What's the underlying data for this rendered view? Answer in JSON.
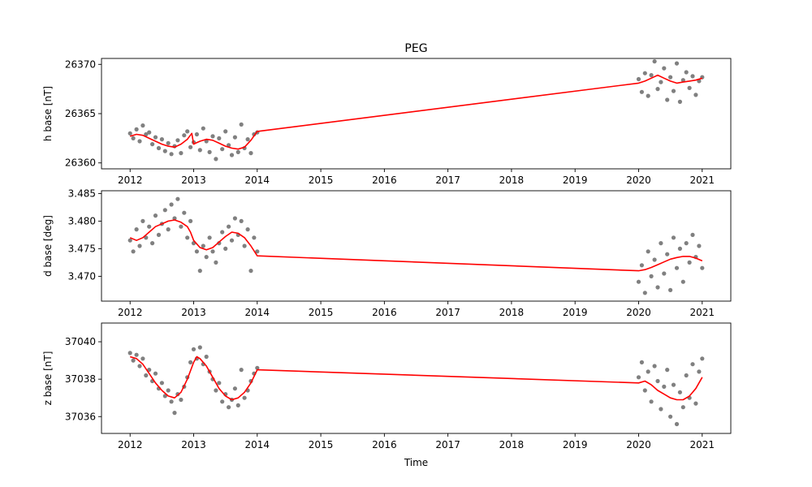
{
  "figure": {
    "title": "PEG",
    "xlabel": "Time"
  },
  "colors": {
    "points": "#808080",
    "fit": "#ff0000",
    "axes": "#000000",
    "background": "#ffffff"
  },
  "chart_data": [
    {
      "type": "scatter",
      "title": "PEG",
      "xlabel": "",
      "ylabel": "h base [nT]",
      "xlim": [
        2011.55,
        2021.45
      ],
      "ylim": [
        26359.4,
        26370.6
      ],
      "x_ticks": [
        2012,
        2013,
        2014,
        2015,
        2016,
        2017,
        2018,
        2019,
        2020,
        2021
      ],
      "y_ticks": [
        26360,
        26365,
        26370
      ],
      "grid": false,
      "series": [
        {
          "style": "points",
          "color": "#808080",
          "x": [
            2012.0,
            2012.05,
            2012.1,
            2012.15,
            2012.2,
            2012.25,
            2012.3,
            2012.35,
            2012.4,
            2012.45,
            2012.5,
            2012.55,
            2012.6,
            2012.65,
            2012.7,
            2012.75,
            2012.8,
            2012.85,
            2012.9,
            2012.95,
            2013.0,
            2013.05,
            2013.1,
            2013.15,
            2013.2,
            2013.25,
            2013.3,
            2013.35,
            2013.4,
            2013.45,
            2013.5,
            2013.55,
            2013.6,
            2013.65,
            2013.7,
            2013.75,
            2013.8,
            2013.85,
            2013.9,
            2013.95,
            2014.0,
            2020.0,
            2020.05,
            2020.1,
            2020.15,
            2020.2,
            2020.25,
            2020.3,
            2020.35,
            2020.4,
            2020.45,
            2020.5,
            2020.55,
            2020.6,
            2020.65,
            2020.7,
            2020.75,
            2020.8,
            2020.85,
            2020.9,
            2020.95,
            2021.0
          ],
          "y": [
            26363.0,
            26362.5,
            26363.4,
            26362.2,
            26363.8,
            26362.9,
            26363.1,
            26361.9,
            26362.6,
            26361.5,
            26362.4,
            26361.2,
            26362.0,
            26360.9,
            26361.7,
            26362.3,
            26361.0,
            26362.8,
            26363.2,
            26361.6,
            26362.1,
            26362.9,
            26361.3,
            26363.5,
            26362.2,
            26361.1,
            26362.7,
            26360.4,
            26362.5,
            26361.4,
            26363.2,
            26361.8,
            26360.8,
            26362.6,
            26361.1,
            26363.9,
            26361.5,
            26362.4,
            26361.0,
            26362.9,
            26363.1,
            26368.5,
            26367.2,
            26369.1,
            26366.8,
            26368.9,
            26370.3,
            26367.5,
            26368.2,
            26369.6,
            26366.4,
            26368.7,
            26367.3,
            26370.1,
            26366.2,
            26368.4,
            26369.2,
            26367.6,
            26368.8,
            26366.9,
            26368.3,
            26368.7
          ]
        },
        {
          "style": "line",
          "color": "#ff0000",
          "x": [
            2012.0,
            2012.1,
            2012.2,
            2012.3,
            2012.4,
            2012.5,
            2012.6,
            2012.7,
            2012.8,
            2012.9,
            2012.97,
            2013.0,
            2013.03,
            2013.1,
            2013.2,
            2013.3,
            2013.4,
            2013.5,
            2013.6,
            2013.7,
            2013.8,
            2013.9,
            2014.0,
            2020.0,
            2020.1,
            2020.2,
            2020.3,
            2020.4,
            2020.5,
            2020.6,
            2020.7,
            2020.8,
            2020.9,
            2021.0
          ],
          "y": [
            26362.7,
            26362.9,
            26362.8,
            26362.5,
            26362.2,
            26361.9,
            26361.7,
            26361.6,
            26361.9,
            26362.4,
            26363.0,
            26361.9,
            26362.0,
            26362.2,
            26362.4,
            26362.3,
            26362.0,
            26361.7,
            26361.5,
            26361.4,
            26361.6,
            26362.3,
            26363.2,
            26368.1,
            26368.3,
            26368.6,
            26368.9,
            26368.6,
            26368.3,
            26368.1,
            26368.2,
            26368.3,
            26368.4,
            26368.6
          ]
        }
      ]
    },
    {
      "type": "scatter",
      "title": "",
      "xlabel": "",
      "ylabel": "d base [deg]",
      "xlim": [
        2011.55,
        2021.45
      ],
      "ylim": [
        3.4655,
        3.4855
      ],
      "x_ticks": [
        2012,
        2013,
        2014,
        2015,
        2016,
        2017,
        2018,
        2019,
        2020,
        2021
      ],
      "y_ticks": [
        3.47,
        3.475,
        3.48,
        3.485
      ],
      "grid": false,
      "series": [
        {
          "style": "points",
          "color": "#808080",
          "x": [
            2012.0,
            2012.05,
            2012.1,
            2012.15,
            2012.2,
            2012.25,
            2012.3,
            2012.35,
            2012.4,
            2012.45,
            2012.5,
            2012.55,
            2012.6,
            2012.65,
            2012.7,
            2012.75,
            2012.8,
            2012.85,
            2012.9,
            2012.95,
            2013.0,
            2013.05,
            2013.1,
            2013.15,
            2013.2,
            2013.25,
            2013.3,
            2013.35,
            2013.4,
            2013.45,
            2013.5,
            2013.55,
            2013.6,
            2013.65,
            2013.7,
            2013.75,
            2013.8,
            2013.85,
            2013.9,
            2013.95,
            2014.0,
            2020.0,
            2020.05,
            2020.1,
            2020.15,
            2020.2,
            2020.25,
            2020.3,
            2020.35,
            2020.4,
            2020.45,
            2020.5,
            2020.55,
            2020.6,
            2020.65,
            2020.7,
            2020.75,
            2020.8,
            2020.85,
            2020.9,
            2020.95,
            2021.0
          ],
          "y": [
            3.4765,
            3.4745,
            3.4785,
            3.4755,
            3.48,
            3.477,
            3.479,
            3.476,
            3.481,
            3.4775,
            3.4795,
            3.482,
            3.4785,
            3.483,
            3.4805,
            3.484,
            3.479,
            3.4815,
            3.477,
            3.48,
            3.476,
            3.4745,
            3.471,
            3.4755,
            3.4735,
            3.477,
            3.4745,
            3.4725,
            3.476,
            3.478,
            3.475,
            3.479,
            3.4765,
            3.4805,
            3.4775,
            3.48,
            3.4755,
            3.4785,
            3.471,
            3.477,
            3.4745,
            3.469,
            3.472,
            3.467,
            3.4745,
            3.47,
            3.473,
            3.468,
            3.476,
            3.4705,
            3.474,
            3.4675,
            3.477,
            3.4715,
            3.475,
            3.469,
            3.476,
            3.4725,
            3.4775,
            3.4735,
            3.4755,
            3.4715
          ]
        },
        {
          "style": "line",
          "color": "#ff0000",
          "x": [
            2012.0,
            2012.1,
            2012.2,
            2012.3,
            2012.4,
            2012.5,
            2012.6,
            2012.7,
            2012.8,
            2012.9,
            2012.95,
            2013.0,
            2013.1,
            2013.2,
            2013.3,
            2013.4,
            2013.5,
            2013.6,
            2013.7,
            2013.8,
            2013.9,
            2014.0,
            2020.0,
            2020.1,
            2020.2,
            2020.3,
            2020.4,
            2020.5,
            2020.6,
            2020.7,
            2020.8,
            2020.9,
            2021.0
          ],
          "y": [
            3.477,
            3.4765,
            3.477,
            3.478,
            3.479,
            3.4795,
            3.48,
            3.4802,
            3.4798,
            3.479,
            3.478,
            3.4765,
            3.4752,
            3.4748,
            3.4752,
            3.4762,
            3.4772,
            3.478,
            3.4778,
            3.477,
            3.4755,
            3.4737,
            3.471,
            3.4712,
            3.4716,
            3.4721,
            3.4726,
            3.4731,
            3.4734,
            3.4736,
            3.4736,
            3.4733,
            3.4728
          ]
        }
      ]
    },
    {
      "type": "scatter",
      "title": "",
      "xlabel": "Time",
      "ylabel": "z base [nT]",
      "xlim": [
        2011.55,
        2021.45
      ],
      "ylim": [
        37035.1,
        37041.0
      ],
      "x_ticks": [
        2012,
        2013,
        2014,
        2015,
        2016,
        2017,
        2018,
        2019,
        2020,
        2021
      ],
      "y_ticks": [
        37036,
        37038,
        37040
      ],
      "grid": false,
      "series": [
        {
          "style": "points",
          "color": "#808080",
          "x": [
            2012.0,
            2012.05,
            2012.1,
            2012.15,
            2012.2,
            2012.25,
            2012.3,
            2012.35,
            2012.4,
            2012.45,
            2012.5,
            2012.55,
            2012.6,
            2012.65,
            2012.7,
            2012.75,
            2012.8,
            2012.85,
            2012.9,
            2012.95,
            2013.0,
            2013.05,
            2013.1,
            2013.15,
            2013.2,
            2013.25,
            2013.3,
            2013.35,
            2013.4,
            2013.45,
            2013.5,
            2013.55,
            2013.6,
            2013.65,
            2013.7,
            2013.75,
            2013.8,
            2013.85,
            2013.9,
            2013.95,
            2014.0,
            2020.0,
            2020.05,
            2020.1,
            2020.15,
            2020.2,
            2020.25,
            2020.3,
            2020.35,
            2020.4,
            2020.45,
            2020.5,
            2020.55,
            2020.6,
            2020.65,
            2020.7,
            2020.75,
            2020.8,
            2020.85,
            2020.9,
            2020.95,
            2021.0
          ],
          "y": [
            37039.4,
            37039.0,
            37039.3,
            37038.7,
            37039.1,
            37038.2,
            37038.5,
            37037.9,
            37038.3,
            37037.5,
            37037.8,
            37037.1,
            37037.4,
            37036.8,
            37036.2,
            37037.2,
            37036.9,
            37037.6,
            37038.1,
            37038.9,
            37039.6,
            37039.1,
            37039.7,
            37038.8,
            37039.2,
            37038.4,
            37038.0,
            37037.4,
            37037.8,
            37036.8,
            37037.2,
            37036.5,
            37036.9,
            37037.5,
            37036.6,
            37038.5,
            37037.0,
            37037.4,
            37037.9,
            37038.3,
            37038.6,
            37038.1,
            37038.9,
            37037.4,
            37038.4,
            37036.8,
            37038.7,
            37037.9,
            37036.4,
            37037.6,
            37038.5,
            37036.0,
            37037.7,
            37035.6,
            37037.3,
            37036.5,
            37038.2,
            37037.0,
            37038.8,
            37036.7,
            37038.4,
            37039.1
          ]
        },
        {
          "style": "line",
          "color": "#ff0000",
          "x": [
            2012.0,
            2012.1,
            2012.2,
            2012.3,
            2012.4,
            2012.5,
            2012.6,
            2012.7,
            2012.8,
            2012.9,
            2013.0,
            2013.05,
            2013.1,
            2013.2,
            2013.3,
            2013.4,
            2013.5,
            2013.6,
            2013.7,
            2013.8,
            2013.9,
            2014.0,
            2020.0,
            2020.1,
            2020.2,
            2020.3,
            2020.4,
            2020.5,
            2020.6,
            2020.7,
            2020.8,
            2020.9,
            2021.0
          ],
          "y": [
            37039.2,
            37039.1,
            37038.8,
            37038.3,
            37037.8,
            37037.4,
            37037.1,
            37037.0,
            37037.3,
            37038.0,
            37038.9,
            37039.2,
            37039.1,
            37038.7,
            37038.1,
            37037.5,
            37037.1,
            37036.9,
            37037.0,
            37037.3,
            37037.8,
            37038.5,
            37037.8,
            37037.9,
            37037.7,
            37037.4,
            37037.2,
            37037.0,
            37036.9,
            37036.9,
            37037.1,
            37037.5,
            37038.1
          ]
        }
      ]
    }
  ]
}
